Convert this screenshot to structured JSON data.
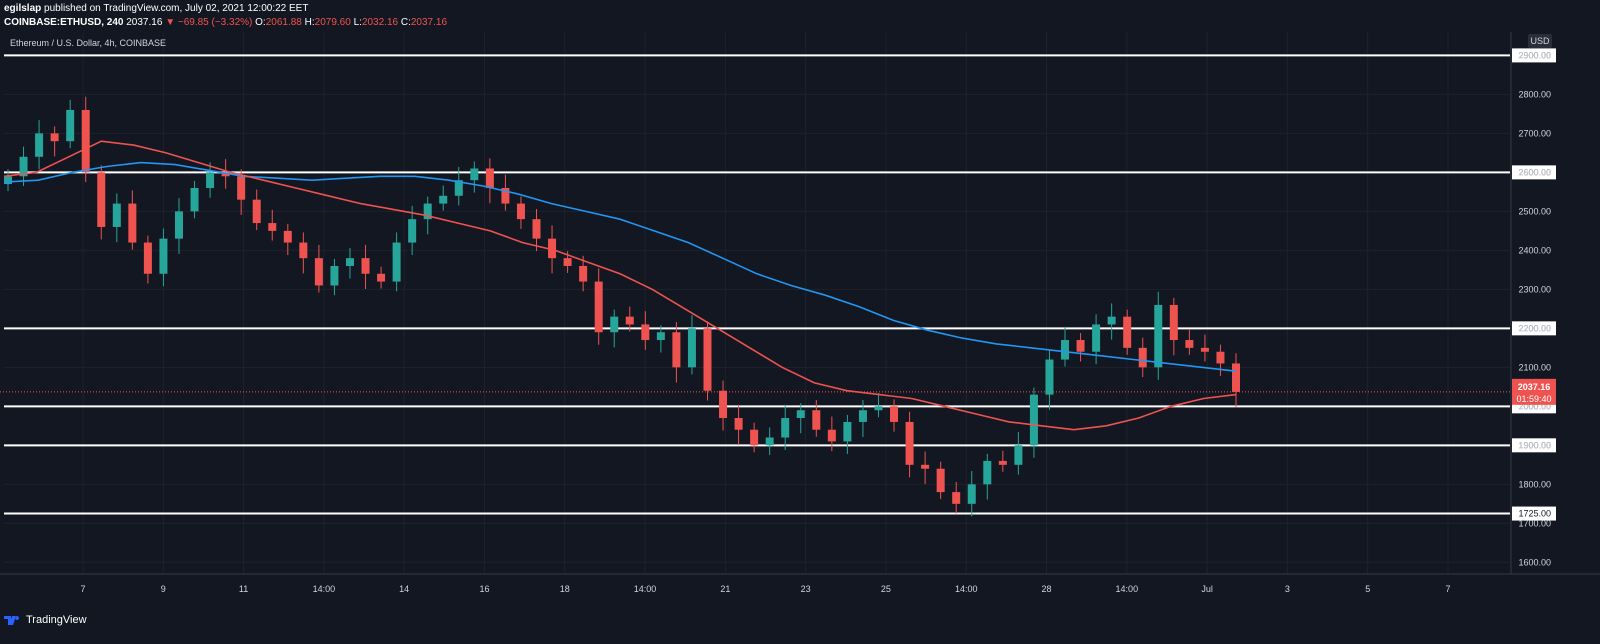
{
  "header": {
    "author": "egilslap",
    "published": "published on TradingView.com, July 02, 2021 12:00:22 EET",
    "symbol": "COINBASE:ETHUSD, 240",
    "last": "2037.16",
    "change": "▼ −69.85 (−3.32%)",
    "o_label": "O:",
    "o": "2061.88",
    "h_label": "H:",
    "h": "2079.60",
    "l_label": "L:",
    "l": "2032.16",
    "c_label": "C:",
    "c": "2037.16"
  },
  "chart_title": "Ethereum / U.S. Dollar, 4h, COINBASE",
  "currency": "USD",
  "price_tag": {
    "price": "2037.16",
    "countdown": "01:59:40"
  },
  "footer": {
    "brand": "TradingView"
  },
  "colors": {
    "bg": "#131722",
    "up": "#26a69a",
    "down": "#ef5350",
    "ma_fast": "#ef5350",
    "ma_slow": "#2196f3",
    "levels": "#ffffff",
    "text": "#d1d4dc"
  },
  "chart_data": {
    "type": "candlestick",
    "ylim": [
      1570,
      2960
    ],
    "y_ticks": [
      1600,
      1700,
      1800,
      1900,
      2000,
      2100,
      2200,
      2300,
      2400,
      2500,
      2600,
      2700,
      2800,
      2900
    ],
    "y_tick_labels": [
      "1600.00",
      "1700.00",
      "1800.00",
      "1900.00",
      "2000.00",
      "2100.00",
      "2200.00",
      "2300.00",
      "2400.00",
      "2500.00",
      "2600.00",
      "2700.00",
      "2800.00",
      "2900.00"
    ],
    "support_resistance_levels": [
      {
        "value": 2900,
        "label": "2900.00"
      },
      {
        "value": 2600,
        "label": "2600.00"
      },
      {
        "value": 2200,
        "label": "2200.00"
      },
      {
        "value": 2000,
        "label": "2000.00"
      },
      {
        "value": 1900,
        "label": "1900.00"
      },
      {
        "value": 1725,
        "label": "1725.00"
      }
    ],
    "x_tick_labels": [
      "7",
      "9",
      "11",
      "14:00",
      "14",
      "16",
      "18",
      "14:00",
      "21",
      "23",
      "25",
      "14:00",
      "28",
      "14:00",
      "Jul",
      "3",
      "5",
      "7"
    ],
    "close_series": [
      2590,
      2640,
      2700,
      2680,
      2760,
      2600,
      2460,
      2520,
      2420,
      2340,
      2430,
      2500,
      2560,
      2600,
      2590,
      2530,
      2470,
      2450,
      2420,
      2380,
      2310,
      2360,
      2380,
      2340,
      2320,
      2420,
      2480,
      2520,
      2540,
      2580,
      2610,
      2560,
      2520,
      2480,
      2430,
      2380,
      2360,
      2320,
      2190,
      2230,
      2210,
      2170,
      2190,
      2100,
      2200,
      2040,
      1970,
      1940,
      1900,
      1920,
      1970,
      1990,
      1940,
      1910,
      1960,
      1990,
      2000,
      1960,
      1850,
      1840,
      1780,
      1750,
      1800,
      1860,
      1850,
      1900,
      2030,
      2120,
      2170,
      2140,
      2210,
      2230,
      2150,
      2100,
      2260,
      2170,
      2150,
      2140,
      2110,
      2037
    ],
    "ema_fast": [
      2590,
      2600,
      2640,
      2680,
      2670,
      2650,
      2625,
      2600,
      2580,
      2560,
      2540,
      2520,
      2505,
      2490,
      2470,
      2450,
      2420,
      2400,
      2370,
      2340,
      2300,
      2250,
      2200,
      2150,
      2100,
      2060,
      2040,
      2030,
      2020,
      2000,
      1980,
      1960,
      1950,
      1940,
      1950,
      1970,
      2000,
      2020,
      2030
    ],
    "ema_slow": [
      2575,
      2580,
      2600,
      2615,
      2625,
      2620,
      2605,
      2590,
      2585,
      2580,
      2585,
      2590,
      2590,
      2580,
      2565,
      2545,
      2520,
      2500,
      2480,
      2450,
      2420,
      2380,
      2340,
      2310,
      2285,
      2255,
      2220,
      2195,
      2175,
      2160,
      2150,
      2140,
      2130,
      2120,
      2110,
      2100,
      2090
    ],
    "last_price": 2037.16
  }
}
